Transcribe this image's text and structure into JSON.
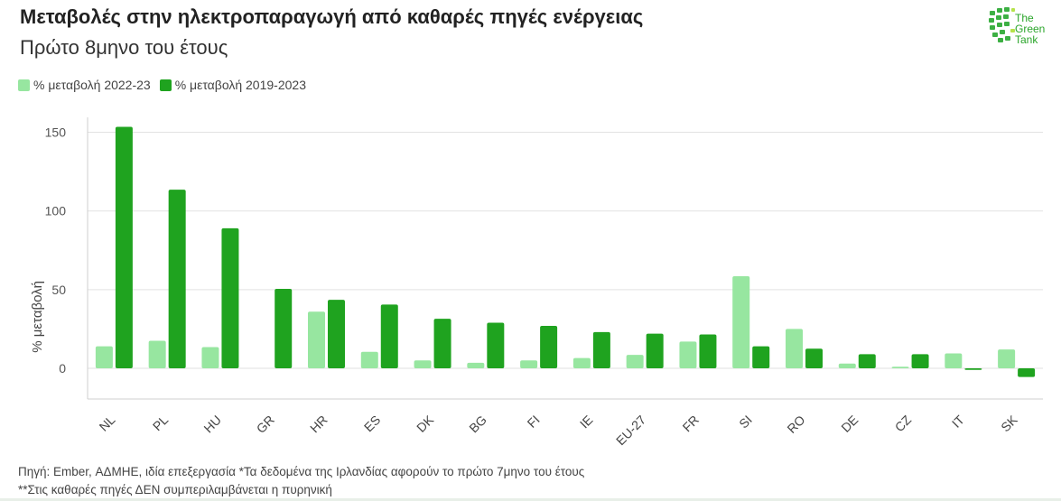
{
  "header": {
    "title": "Μεταβολές στην ηλεκτροπαραγωγή από καθαρές πηγές ενέργειας",
    "subtitle": "Πρώτο 8μηνο του έτους"
  },
  "logo": {
    "line1": "The",
    "line2": "Green",
    "line3": "Tank"
  },
  "legend": [
    {
      "label": "% μεταβολή 2022-23",
      "color": "#97e6a0"
    },
    {
      "label": "% μεταβολή 2019-2023",
      "color": "#1fa31f"
    }
  ],
  "chart_data": {
    "type": "bar",
    "ylabel": "% μεταβολή",
    "ylim": [
      -20,
      160
    ],
    "yticks": [
      0,
      50,
      100,
      150
    ],
    "categories": [
      "NL",
      "PL",
      "HU",
      "GR",
      "HR",
      "ES",
      "DK",
      "BG",
      "FI",
      "IE",
      "EU-27",
      "FR",
      "SI",
      "RO",
      "DE",
      "CZ",
      "IT",
      "SK"
    ],
    "series": [
      {
        "name": "% μεταβολή 2022-23",
        "color": "#97e6a0",
        "values": [
          14,
          17.5,
          13.5,
          0,
          36,
          10.5,
          5,
          3.5,
          5,
          6.5,
          8.5,
          17,
          58.5,
          25,
          3,
          1,
          9.5,
          12
        ]
      },
      {
        "name": "% μεταβολή 2019-2023",
        "color": "#1fa31f",
        "values": [
          153.5,
          113.5,
          89,
          50.5,
          43.5,
          40.5,
          31.5,
          29,
          27,
          23,
          22,
          21.5,
          14,
          12.5,
          9,
          9,
          -1,
          -5.5
        ]
      }
    ],
    "grid": true
  },
  "footer": {
    "line1": "Πηγή: Ember, ΑΔΜΗΕ, ιδία επεξεργασία *Τα δεδομένα της Ιρλανδίας αφορούν το πρώτο 7μηνο του έτους",
    "line2": "**Στις καθαρές πηγές ΔΕΝ συμπεριλαμβάνεται η πυρηνική"
  }
}
